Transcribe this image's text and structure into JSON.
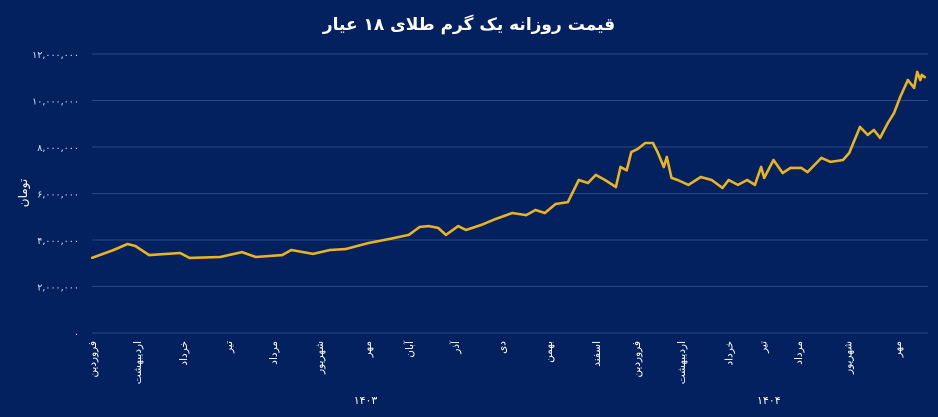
{
  "chart_data": {
    "type": "line",
    "title": "قیمت روزانه یک گرم طلای ۱۸ عیار",
    "ylabel": "تومان",
    "xlabel": "",
    "ylim": [
      0,
      12000000
    ],
    "xlim": [
      0,
      541
    ],
    "x_unit": "days since start of Farvardin 1403 (approx.)",
    "grid": true,
    "legend": "none",
    "colors": {
      "background": "#04215f",
      "line": "#e8b420",
      "grid": "#2b4785",
      "text": "#ffffff"
    },
    "yticks": [
      {
        "value": 0,
        "label": "۰"
      },
      {
        "value": 2000000,
        "label": "۲,۰۰۰,۰۰۰"
      },
      {
        "value": 4000000,
        "label": "۴,۰۰۰,۰۰۰"
      },
      {
        "value": 6000000,
        "label": "۶,۰۰۰,۰۰۰"
      },
      {
        "value": 8000000,
        "label": "۸,۰۰۰,۰۰۰"
      },
      {
        "value": 10000000,
        "label": "۱۰,۰۰۰,۰۰۰"
      },
      {
        "value": 12000000,
        "label": "۱۲,۰۰۰,۰۰۰"
      }
    ],
    "xticks": [
      {
        "day": 0,
        "label": "فروردین"
      },
      {
        "day": 29,
        "label": "اردیبهشت"
      },
      {
        "day": 59,
        "label": "خرداد"
      },
      {
        "day": 88,
        "label": "تیر"
      },
      {
        "day": 117,
        "label": "مرداد"
      },
      {
        "day": 147,
        "label": "شهریور"
      },
      {
        "day": 178,
        "label": "مهر"
      },
      {
        "day": 205,
        "label": "آبان"
      },
      {
        "day": 235,
        "label": "آذر"
      },
      {
        "day": 265,
        "label": "دی"
      },
      {
        "day": 295,
        "label": "بهمن"
      },
      {
        "day": 326,
        "label": "اسفند"
      },
      {
        "day": 352,
        "label": "فروردین"
      },
      {
        "day": 381,
        "label": "اردیبهشت"
      },
      {
        "day": 412,
        "label": "خرداد"
      },
      {
        "day": 434,
        "label": "تیر"
      },
      {
        "day": 457,
        "label": "مرداد"
      },
      {
        "day": 489,
        "label": "شهریور"
      },
      {
        "day": 521,
        "label": "مهر"
      }
    ],
    "years": [
      {
        "day": 177,
        "label": "۱۴۰۳"
      },
      {
        "day": 438,
        "label": "۱۴۰۴"
      }
    ],
    "series": [
      {
        "name": "قیمت",
        "x": [
          0,
          14,
          23,
          28,
          37,
          57,
          63,
          83,
          97,
          106,
          123,
          129,
          143,
          154,
          164,
          179,
          192,
          205,
          212,
          218,
          224,
          229,
          237,
          242,
          252,
          261,
          272,
          281,
          287,
          293,
          300,
          308,
          315,
          321,
          326,
          332,
          339,
          342,
          346,
          349,
          353,
          358,
          363,
          366,
          370,
          372,
          375,
          379,
          386,
          394,
          401,
          408,
          412,
          418,
          424,
          429,
          433,
          435,
          441,
          447,
          452,
          459,
          463,
          472,
          478,
          486,
          490,
          493,
          497,
          502,
          506,
          510,
          515,
          519,
          523,
          528,
          532,
          534,
          536,
          537,
          539
        ],
        "values": [
          3230000,
          3570000,
          3830000,
          3740000,
          3350000,
          3440000,
          3230000,
          3270000,
          3480000,
          3270000,
          3350000,
          3570000,
          3400000,
          3570000,
          3610000,
          3870000,
          4040000,
          4220000,
          4560000,
          4600000,
          4520000,
          4220000,
          4600000,
          4430000,
          4650000,
          4900000,
          5160000,
          5070000,
          5290000,
          5160000,
          5550000,
          5630000,
          6580000,
          6450000,
          6800000,
          6580000,
          6280000,
          7140000,
          7000000,
          7780000,
          7910000,
          8170000,
          8170000,
          7780000,
          7140000,
          7570000,
          6670000,
          6580000,
          6370000,
          6710000,
          6580000,
          6240000,
          6580000,
          6370000,
          6580000,
          6370000,
          7140000,
          6670000,
          7440000,
          6880000,
          7100000,
          7100000,
          6920000,
          7530000,
          7360000,
          7440000,
          7740000,
          8220000,
          8860000,
          8520000,
          8730000,
          8390000,
          9030000,
          9460000,
          10150000,
          10880000,
          10540000,
          11230000,
          10880000,
          11100000,
          11000000
        ]
      }
    ]
  }
}
